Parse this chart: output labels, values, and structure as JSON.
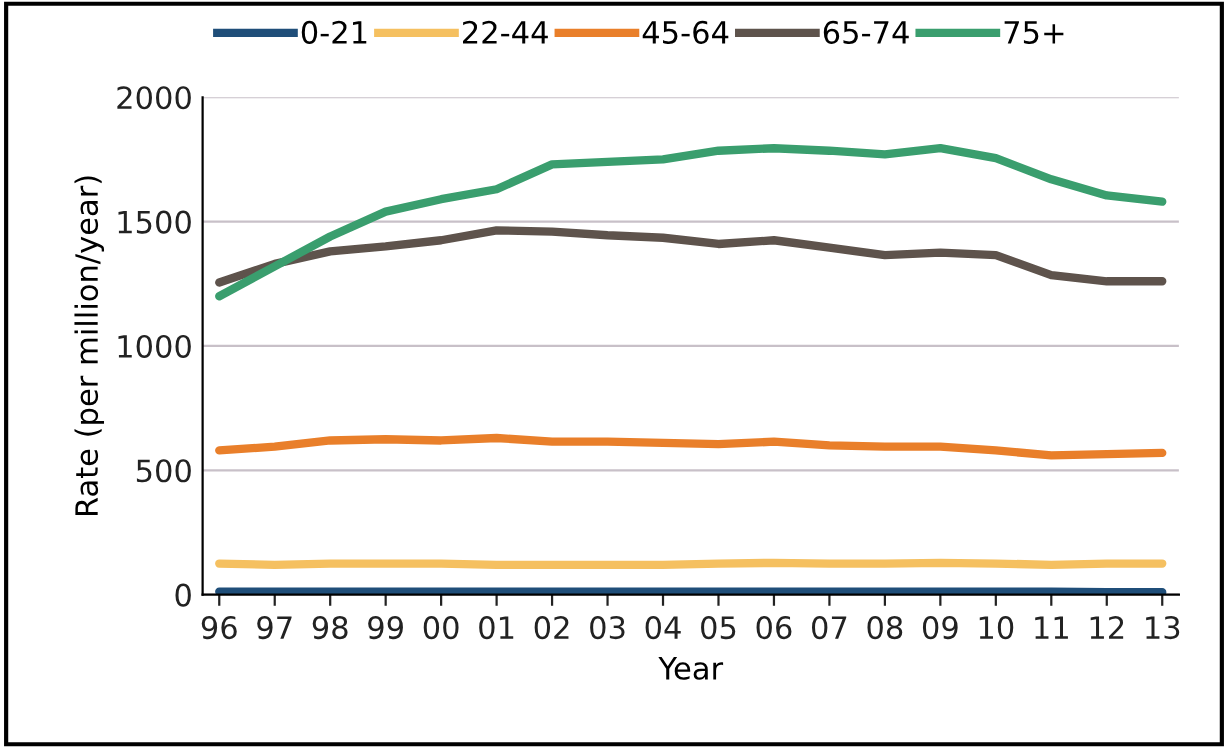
{
  "chart_data": {
    "type": "line",
    "xlabel": "Year",
    "ylabel": "Rate (per million/year)",
    "categories": [
      "96",
      "97",
      "98",
      "99",
      "00",
      "01",
      "02",
      "03",
      "04",
      "05",
      "06",
      "07",
      "08",
      "09",
      "10",
      "11",
      "12",
      "13"
    ],
    "series": [
      {
        "name": "0-21",
        "color": "#1f4e79",
        "values": [
          12,
          12,
          12,
          12,
          12,
          12,
          12,
          12,
          12,
          12,
          12,
          12,
          12,
          12,
          12,
          12,
          10,
          10
        ]
      },
      {
        "name": "22-44",
        "color": "#f5c060",
        "values": [
          125,
          120,
          125,
          125,
          125,
          120,
          120,
          120,
          120,
          125,
          128,
          125,
          125,
          128,
          125,
          120,
          125,
          125
        ]
      },
      {
        "name": "45-64",
        "color": "#e97f2a",
        "values": [
          580,
          595,
          620,
          625,
          620,
          630,
          615,
          615,
          610,
          605,
          615,
          600,
          595,
          595,
          580,
          560,
          565,
          570
        ]
      },
      {
        "name": "65-74",
        "color": "#5e534c",
        "values": [
          1255,
          1330,
          1380,
          1400,
          1425,
          1465,
          1460,
          1445,
          1435,
          1410,
          1425,
          1395,
          1365,
          1375,
          1365,
          1285,
          1260,
          1260
        ]
      },
      {
        "name": "75+",
        "color": "#3a9e6e",
        "values": [
          1200,
          1320,
          1440,
          1540,
          1590,
          1630,
          1730,
          1740,
          1750,
          1785,
          1795,
          1785,
          1770,
          1795,
          1755,
          1670,
          1605,
          1580
        ]
      }
    ],
    "ylim": [
      0,
      2000
    ],
    "yticks": [
      0,
      500,
      1000,
      1500,
      2000
    ],
    "grid": "y",
    "legend": "top",
    "marker": "none",
    "line_style": "solid"
  }
}
